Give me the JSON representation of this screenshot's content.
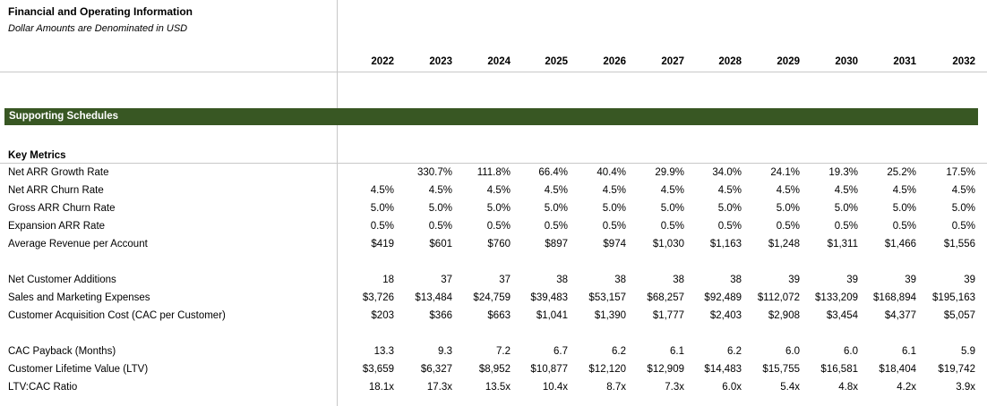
{
  "header": {
    "title": "Financial and Operating Information",
    "subtitle": "Dollar Amounts are Denominated in USD"
  },
  "years": [
    "2022",
    "2023",
    "2024",
    "2025",
    "2026",
    "2027",
    "2028",
    "2029",
    "2030",
    "2031",
    "2032"
  ],
  "banner": {
    "label": "Supporting Schedules"
  },
  "section": {
    "title": "Key Metrics"
  },
  "rows": [
    {
      "label": "Net ARR Growth Rate",
      "values": [
        "",
        "330.7%",
        "111.8%",
        "66.4%",
        "40.4%",
        "29.9%",
        "34.0%",
        "24.1%",
        "19.3%",
        "25.2%",
        "17.5%"
      ]
    },
    {
      "label": "Net ARR Churn Rate",
      "values": [
        "4.5%",
        "4.5%",
        "4.5%",
        "4.5%",
        "4.5%",
        "4.5%",
        "4.5%",
        "4.5%",
        "4.5%",
        "4.5%",
        "4.5%"
      ]
    },
    {
      "label": "Gross ARR Churn Rate",
      "values": [
        "5.0%",
        "5.0%",
        "5.0%",
        "5.0%",
        "5.0%",
        "5.0%",
        "5.0%",
        "5.0%",
        "5.0%",
        "5.0%",
        "5.0%"
      ]
    },
    {
      "label": "Expansion ARR Rate",
      "values": [
        "0.5%",
        "0.5%",
        "0.5%",
        "0.5%",
        "0.5%",
        "0.5%",
        "0.5%",
        "0.5%",
        "0.5%",
        "0.5%",
        "0.5%"
      ]
    },
    {
      "label": "Average Revenue per Account",
      "values": [
        "$419",
        "$601",
        "$760",
        "$897",
        "$974",
        "$1,030",
        "$1,163",
        "$1,248",
        "$1,311",
        "$1,466",
        "$1,556"
      ]
    },
    {
      "label": "Net Customer Additions",
      "values": [
        "18",
        "37",
        "37",
        "38",
        "38",
        "38",
        "38",
        "39",
        "39",
        "39",
        "39"
      ]
    },
    {
      "label": "Sales and Marketing Expenses",
      "values": [
        "$3,726",
        "$13,484",
        "$24,759",
        "$39,483",
        "$53,157",
        "$68,257",
        "$92,489",
        "$112,072",
        "$133,209",
        "$168,894",
        "$195,163"
      ]
    },
    {
      "label": "Customer Acquisition Cost (CAC per Customer)",
      "values": [
        "$203",
        "$366",
        "$663",
        "$1,041",
        "$1,390",
        "$1,777",
        "$2,403",
        "$2,908",
        "$3,454",
        "$4,377",
        "$5,057"
      ]
    },
    {
      "label": "CAC Payback (Months)",
      "values": [
        "13.3",
        "9.3",
        "7.2",
        "6.7",
        "6.2",
        "6.1",
        "6.2",
        "6.0",
        "6.0",
        "6.1",
        "5.9"
      ]
    },
    {
      "label": "Customer Lifetime Value (LTV)",
      "values": [
        "$3,659",
        "$6,327",
        "$8,952",
        "$10,877",
        "$12,120",
        "$12,909",
        "$14,483",
        "$15,755",
        "$16,581",
        "$18,404",
        "$19,742"
      ]
    },
    {
      "label": "LTV:CAC Ratio",
      "values": [
        "18.1x",
        "17.3x",
        "13.5x",
        "10.4x",
        "8.7x",
        "7.3x",
        "6.0x",
        "5.4x",
        "4.8x",
        "4.2x",
        "3.9x"
      ]
    }
  ]
}
